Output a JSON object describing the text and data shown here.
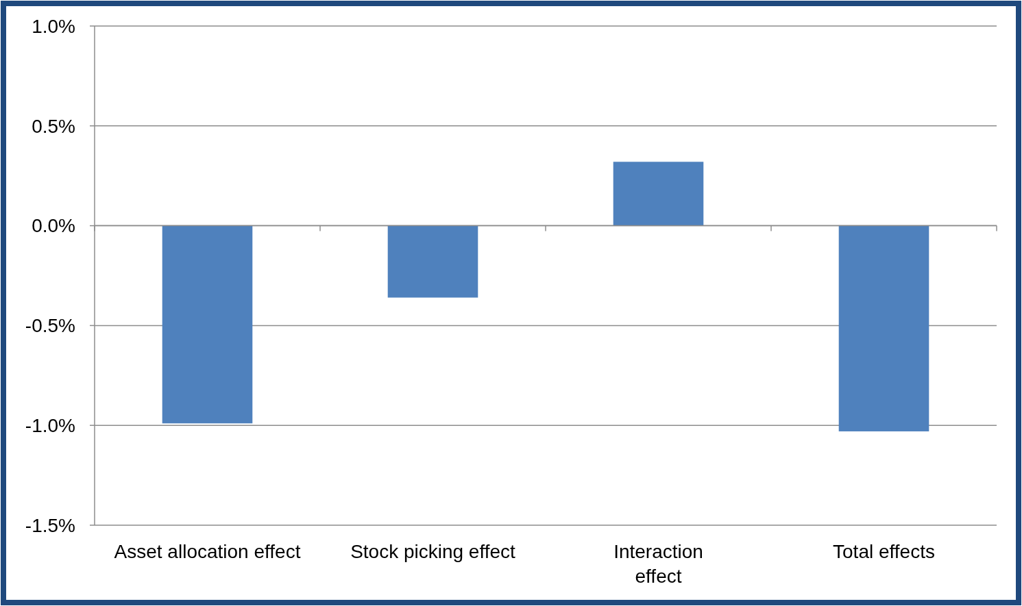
{
  "chart_data": {
    "type": "bar",
    "categories": [
      "Asset allocation effect",
      "Stock picking effect",
      "Interaction\neffect",
      "Total effects"
    ],
    "values": [
      -0.99,
      -0.36,
      0.32,
      -1.03
    ],
    "color": "#4f81bd",
    "ylim": [
      -1.5,
      1.0
    ],
    "yticks": [
      {
        "value": -1.5,
        "label": "-1.5%"
      },
      {
        "value": -1.0,
        "label": "-1.0%"
      },
      {
        "value": -0.5,
        "label": "-0.5%"
      },
      {
        "value": 0,
        "label": "0.0%"
      },
      {
        "value": 0.5,
        "label": "0.5%"
      },
      {
        "value": 1.0,
        "label": "1.0%"
      }
    ],
    "grid": "y"
  }
}
